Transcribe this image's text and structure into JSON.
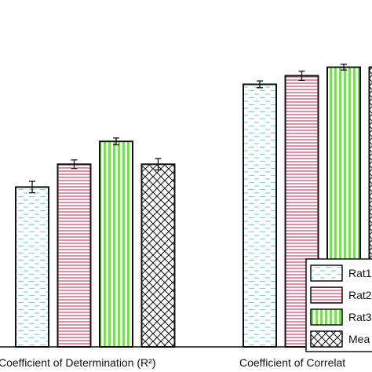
{
  "chart_data": {
    "type": "bar",
    "categories": [
      "Coefficient of Determination (R²)",
      "Coefficient of Correlat"
    ],
    "series": [
      {
        "name": "Rat1",
        "values": [
          0.56,
          0.92
        ],
        "errors": [
          0.02,
          0.012
        ],
        "color": "#7fd3d8",
        "pattern": "dashes"
      },
      {
        "name": "Rat2",
        "values": [
          0.64,
          0.95
        ],
        "errors": [
          0.015,
          0.016
        ],
        "color": "#e0708a",
        "pattern": "horizontal-lines"
      },
      {
        "name": "Rat3",
        "values": [
          0.72,
          0.98
        ],
        "errors": [
          0.012,
          0.01
        ],
        "color": "#7ddd5a",
        "pattern": "vertical-stripes"
      },
      {
        "name": "Mea",
        "values": [
          0.64,
          0.98
        ],
        "errors": [
          0.02,
          0.0
        ],
        "color": "#111111",
        "pattern": "crosshatch"
      }
    ],
    "ylim": [
      0,
      1.1
    ],
    "legend": "bottom-right",
    "grid": false
  }
}
